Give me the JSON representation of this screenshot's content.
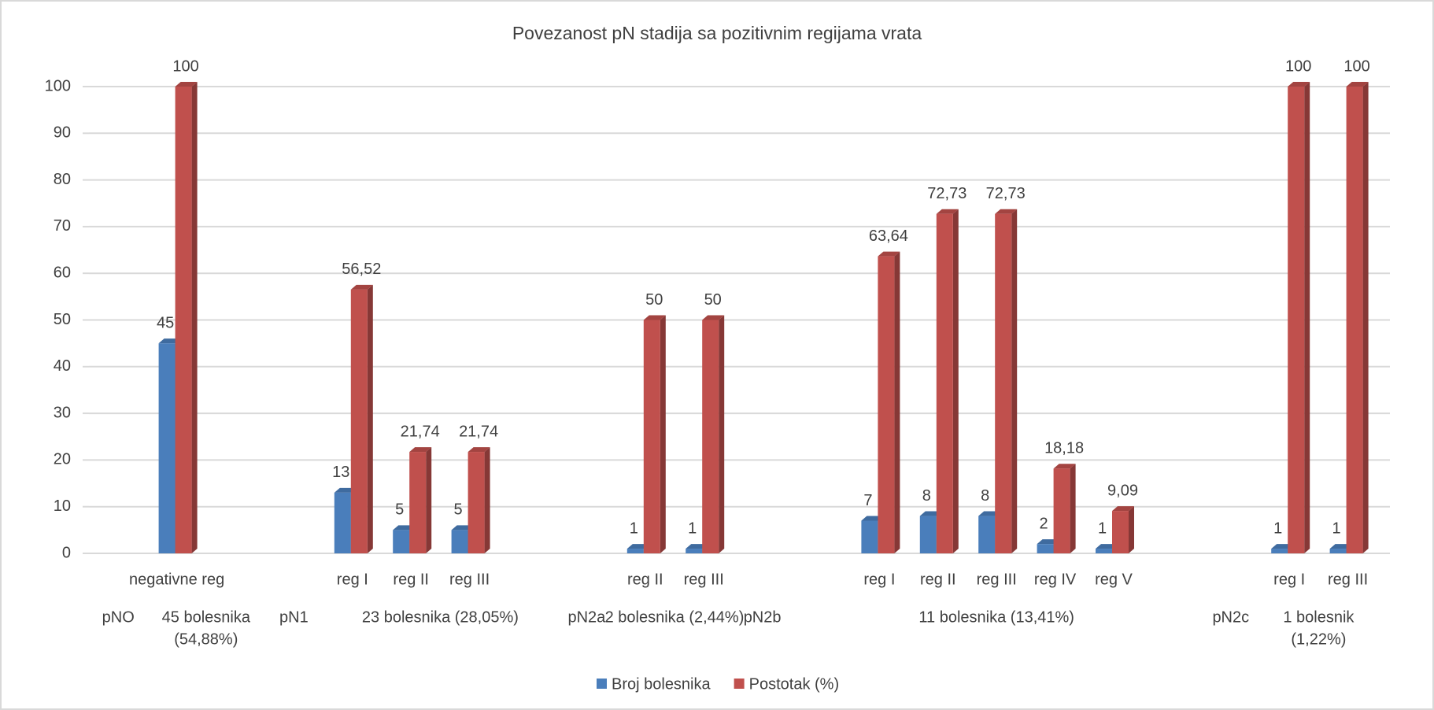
{
  "chart_data": {
    "type": "bar",
    "title": "Povezanost pN stadija sa pozitivnim regijama vrata",
    "categories": [
      null,
      "negativne reg",
      null,
      null,
      "reg I",
      "reg II",
      "reg III",
      null,
      null,
      "reg II",
      "reg III",
      null,
      null,
      "reg I",
      "reg II",
      "reg III",
      "reg IV",
      "reg V",
      null,
      null,
      "reg I",
      "reg III"
    ],
    "group_labels": [
      [
        "pNO"
      ],
      [
        "45 bolesnika",
        "(54,88%)"
      ],
      [
        "pN1"
      ],
      [
        "23 bolesnika (28,05%)"
      ],
      [
        "pN2a"
      ],
      [
        "2 bolesnika (2,44%)"
      ],
      [
        "pN2b"
      ],
      [
        "11 bolesnika (13,41%)"
      ],
      [
        "pN2c"
      ],
      [
        "1 bolesnik",
        "(1,22%)"
      ]
    ],
    "series": [
      {
        "name": "Broj bolesnika",
        "color": "#4a7ebb",
        "values": [
          null,
          45,
          null,
          null,
          13,
          5,
          5,
          null,
          null,
          1,
          1,
          null,
          null,
          7,
          8,
          8,
          2,
          1,
          null,
          null,
          1,
          1
        ]
      },
      {
        "name": "Postotak (%)",
        "color": "#c0504d",
        "values": [
          null,
          100,
          null,
          null,
          56.52,
          21.74,
          21.74,
          null,
          null,
          50,
          50,
          null,
          null,
          63.64,
          72.73,
          72.73,
          18.18,
          9.09,
          null,
          null,
          100,
          100
        ],
        "value_labels": [
          null,
          "100",
          null,
          null,
          "56,52",
          "21,74",
          "21,74",
          null,
          null,
          "50",
          "50",
          null,
          null,
          "63,64",
          "72,73",
          "72,73",
          "18,18",
          "9,09",
          null,
          null,
          "100",
          "100"
        ]
      }
    ],
    "ylim": [
      0,
      100
    ],
    "yticks": [
      0,
      10,
      20,
      30,
      40,
      50,
      60,
      70,
      80,
      90,
      100
    ],
    "grid": true,
    "legend": "bottom"
  }
}
